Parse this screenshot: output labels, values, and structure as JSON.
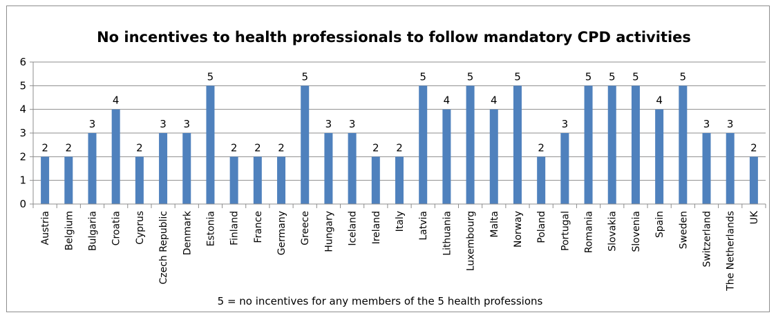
{
  "chart_data": {
    "type": "bar",
    "title": "No incentives to health professionals to follow mandatory CPD activities",
    "note": "5 = no incentives for any  members of the 5 health professions",
    "xlabel": "",
    "ylabel": "",
    "ylim": [
      0,
      6
    ],
    "yticks": [
      "0",
      "1",
      "2",
      "3",
      "4",
      "5",
      "6"
    ],
    "grid": true,
    "legend": "none",
    "bar_color": "#4f81bd",
    "categories": [
      "Austria",
      "Belgium",
      "Bulgaria",
      "Croatia",
      "Cyprus",
      "Czech Republic",
      "Denmark",
      "Estonia",
      "Finland",
      "France",
      "Germany",
      "Greece",
      "Hungary",
      "Iceland",
      "Ireland",
      "Italy",
      "Latvia",
      "Lithuania",
      "Luxembourg",
      "Malta",
      "Norway",
      "Poland",
      "Portugal",
      "Romania",
      "Slovakia",
      "Slovenia",
      "Spain",
      "Sweden",
      "Switzerland",
      "The Netherlands",
      "UK"
    ],
    "values": [
      2,
      2,
      3,
      4,
      2,
      3,
      3,
      5,
      2,
      2,
      2,
      5,
      3,
      3,
      2,
      2,
      5,
      4,
      5,
      4,
      5,
      2,
      3,
      5,
      5,
      5,
      4,
      5,
      3,
      3,
      2
    ],
    "data_labels": [
      "2",
      "2",
      "3",
      "4",
      "2",
      "3",
      "3",
      "5",
      "2",
      "2",
      "2",
      "5",
      "3",
      "3",
      "2",
      "2",
      "5",
      "4",
      "5",
      "4",
      "5",
      "2",
      "3",
      "5",
      "5",
      "5",
      "4",
      "5",
      "3",
      "3",
      "2"
    ]
  }
}
